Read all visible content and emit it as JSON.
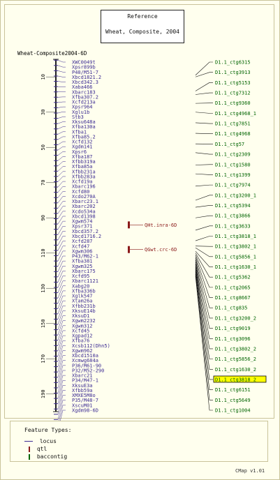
{
  "reference": {
    "line1": "Reference",
    "line2": "Wheat, Composite, 2004"
  },
  "map_title": "Wheat-Composite2004-6D",
  "colors": {
    "locus": "#3c2b93",
    "qtl": "#8b1a1a",
    "contig": "#006400",
    "highlight": "#ffff00",
    "axis_text": "#000000"
  },
  "axis": {
    "min": 0,
    "max": 200,
    "ticks": [
      10,
      30,
      50,
      70,
      90,
      110,
      130,
      150,
      170,
      190
    ]
  },
  "loci": [
    {
      "label": "XWC0049t",
      "pos": 0.5
    },
    {
      "label": "Xpsr899b",
      "pos": 3.5
    },
    {
      "label": "P40/M51-7",
      "pos": 6.5
    },
    {
      "label": "Xbcd1821.2",
      "pos": 9.5
    },
    {
      "label": "Xbcd342.3",
      "pos": 12.5
    },
    {
      "label": "Xaba466",
      "pos": 15.5
    },
    {
      "label": "Xbarc183",
      "pos": 18.5
    },
    {
      "label": "Xfba307.2",
      "pos": 21.5
    },
    {
      "label": "Xcfd213a",
      "pos": 24.5
    },
    {
      "label": "Xpsr964",
      "pos": 27.5
    },
    {
      "label": "Xglu1b",
      "pos": 30.5
    },
    {
      "label": "Stb3",
      "pos": 33.5
    },
    {
      "label": "Xksu648a",
      "pos": 36.5
    },
    {
      "label": "Xfba130a",
      "pos": 39.5
    },
    {
      "label": "Xfba1",
      "pos": 42.5
    },
    {
      "label": "Xfba85.2",
      "pos": 45.5
    },
    {
      "label": "Xcfd132",
      "pos": 48.5
    },
    {
      "label": "Xgdm141",
      "pos": 51.5
    },
    {
      "label": "Xpsr6",
      "pos": 54.5
    },
    {
      "label": "Xfba187",
      "pos": 57.5
    },
    {
      "label": "Xfbb319a",
      "pos": 60.5
    },
    {
      "label": "Xfba85a",
      "pos": 63.5
    },
    {
      "label": "Xfbb231a",
      "pos": 66.5
    },
    {
      "label": "Xfbb283a",
      "pos": 69.5
    },
    {
      "label": "Xcfd19a",
      "pos": 72.5
    },
    {
      "label": "Xbarc196",
      "pos": 75.5
    },
    {
      "label": "Xcfd80",
      "pos": 78.5
    },
    {
      "label": "Xcdo270A",
      "pos": 81.5
    },
    {
      "label": "Xbarc23.1",
      "pos": 84.5
    },
    {
      "label": "Xbarc202",
      "pos": 87.5
    },
    {
      "label": "Xcdo534a",
      "pos": 90.5
    },
    {
      "label": "Xbcd1398",
      "pos": 93.5
    },
    {
      "label": "Xgwm574",
      "pos": 96.5
    },
    {
      "label": "Xpsr371",
      "pos": 99.5
    },
    {
      "label": "Xbcd357.2",
      "pos": 102.5
    },
    {
      "label": "Xbcd1716.2",
      "pos": 105.5
    },
    {
      "label": "Xcfd287",
      "pos": 108.5
    },
    {
      "label": "Xcfd47",
      "pos": 111.5
    },
    {
      "label": "Xgwm306",
      "pos": 114.5
    },
    {
      "label": "P43/M62-1",
      "pos": 117.5
    },
    {
      "label": "Xfba381",
      "pos": 120.5
    },
    {
      "label": "Xgwm325",
      "pos": 123.5
    },
    {
      "label": "Xbarc175",
      "pos": 126.5
    },
    {
      "label": "Xcfd95",
      "pos": 129.5
    },
    {
      "label": "Xbarc1121",
      "pos": 132.5
    },
    {
      "label": "Xabg20",
      "pos": 135.5
    },
    {
      "label": "Xfba336b",
      "pos": 138.5
    },
    {
      "label": "Xglk547",
      "pos": 141.5
    },
    {
      "label": "Xtam26a",
      "pos": 144.5
    },
    {
      "label": "Xfbb231b",
      "pos": 147.5
    },
    {
      "label": "XksuE14b",
      "pos": 150.5
    },
    {
      "label": "XksuD1",
      "pos": 153.5
    },
    {
      "label": "Xgwm2232",
      "pos": 156.5
    },
    {
      "label": "Xgwm312",
      "pos": 159.5
    },
    {
      "label": "Xcfd45",
      "pos": 162.5
    },
    {
      "label": "Xgpad12",
      "pos": 165.5
    },
    {
      "label": "Xfba76",
      "pos": 168.5
    },
    {
      "label": "Xcsb112(Dhn5)",
      "pos": 171.5
    },
    {
      "label": "Xgwm962",
      "pos": 174.5
    },
    {
      "label": "Xbcd1510a",
      "pos": 177.5
    },
    {
      "label": "Xcmwg684a",
      "pos": 180.5
    },
    {
      "label": "P36/M61-90",
      "pos": 183.5
    },
    {
      "label": "P32/M52-290",
      "pos": 186.5
    },
    {
      "label": "Xbarc21",
      "pos": 189.5
    },
    {
      "label": "P34/M47-1",
      "pos": 192.5
    },
    {
      "label": "XksuE3a",
      "pos": 195.5
    },
    {
      "label": "Xfbb59a",
      "pos": 198.5
    },
    {
      "label": "XMXE5M8o",
      "pos": 201.5
    },
    {
      "label": "P35/M48-7",
      "pos": 204.5
    },
    {
      "label": "XscuM01",
      "pos": 207.5
    },
    {
      "label": "Xgdm98-6D",
      "pos": 210.5
    }
  ],
  "qtls": [
    {
      "label": "QHt.inra-6D",
      "pos": 94
    },
    {
      "label": "QGwt.crc-6D",
      "pos": 108
    }
  ],
  "contigs": [
    {
      "label": "D1.1_ctg6315",
      "link": 9
    },
    {
      "label": "D1.1_ctg3913",
      "link": 10
    },
    {
      "label": "D1.1_ctg5153",
      "link": 18
    },
    {
      "label": "D1.1_ctg7312",
      "link": 20
    },
    {
      "label": "D1.1_ctg9360",
      "link": 25
    },
    {
      "label": "D1.1_ctg4968_1",
      "link": 30
    },
    {
      "label": "D1.1_ctg7851",
      "link": 36
    },
    {
      "label": "D1.1_ctg4968",
      "link": 42
    },
    {
      "label": "D1.1_ctg57",
      "link": 48
    },
    {
      "label": "D1.1_ctg2309",
      "link": 53
    },
    {
      "label": "D1.1_ctg1580",
      "link": 60
    },
    {
      "label": "D1.1_ctg1399",
      "link": 65
    },
    {
      "label": "D1.1_ctg7974",
      "link": 72
    },
    {
      "label": "D1.1_ctg3200_1",
      "link": 80
    },
    {
      "label": "D1.1_ctg5394",
      "link": 84
    },
    {
      "label": "D1.1_ctg3866",
      "link": 90
    },
    {
      "label": "D1.1_ctg3633",
      "link": 97
    },
    {
      "label": "D1.1_ctg3818_1",
      "link": 103
    },
    {
      "label": "D1.1_ctg3802_1",
      "link": 106
    },
    {
      "label": "D1.1_ctg5856_1",
      "link": 107
    },
    {
      "label": "D1.1_ctg1630_1",
      "link": 109
    },
    {
      "label": "D1.1_ctg5362",
      "link": 110
    },
    {
      "label": "D1.1_ctg2065",
      "link": 111
    },
    {
      "label": "D1.1_ctg8667",
      "link": 112
    },
    {
      "label": "D1.1_ctg835",
      "link": 113
    },
    {
      "label": "D1.1_ctg3200_2",
      "link": 114
    },
    {
      "label": "D1.1_ctg9019",
      "link": 115
    },
    {
      "label": "D1.1_ctg3096",
      "link": 116
    },
    {
      "label": "D1.1_ctg3802_2",
      "link": 117
    },
    {
      "label": "D1.1_ctg5856_2",
      "link": 118
    },
    {
      "label": "D1.1_ctg1630_2",
      "link": 119
    },
    {
      "label": "D1.1_ctg3818_2",
      "link": 120,
      "highlighted": true
    },
    {
      "label": "D1.1_ctg6151",
      "link": 121
    },
    {
      "label": "D1.1_ctg5649",
      "link": 122
    },
    {
      "label": "D1.1_ctg1004",
      "link": 123
    }
  ],
  "legend": {
    "title": "Feature Types:",
    "items": [
      {
        "label": "locus",
        "kind": "locus"
      },
      {
        "label": "qtl",
        "kind": "qtl"
      },
      {
        "label": "baccontig",
        "kind": "contig"
      }
    ]
  },
  "version": "CMap v1.01"
}
